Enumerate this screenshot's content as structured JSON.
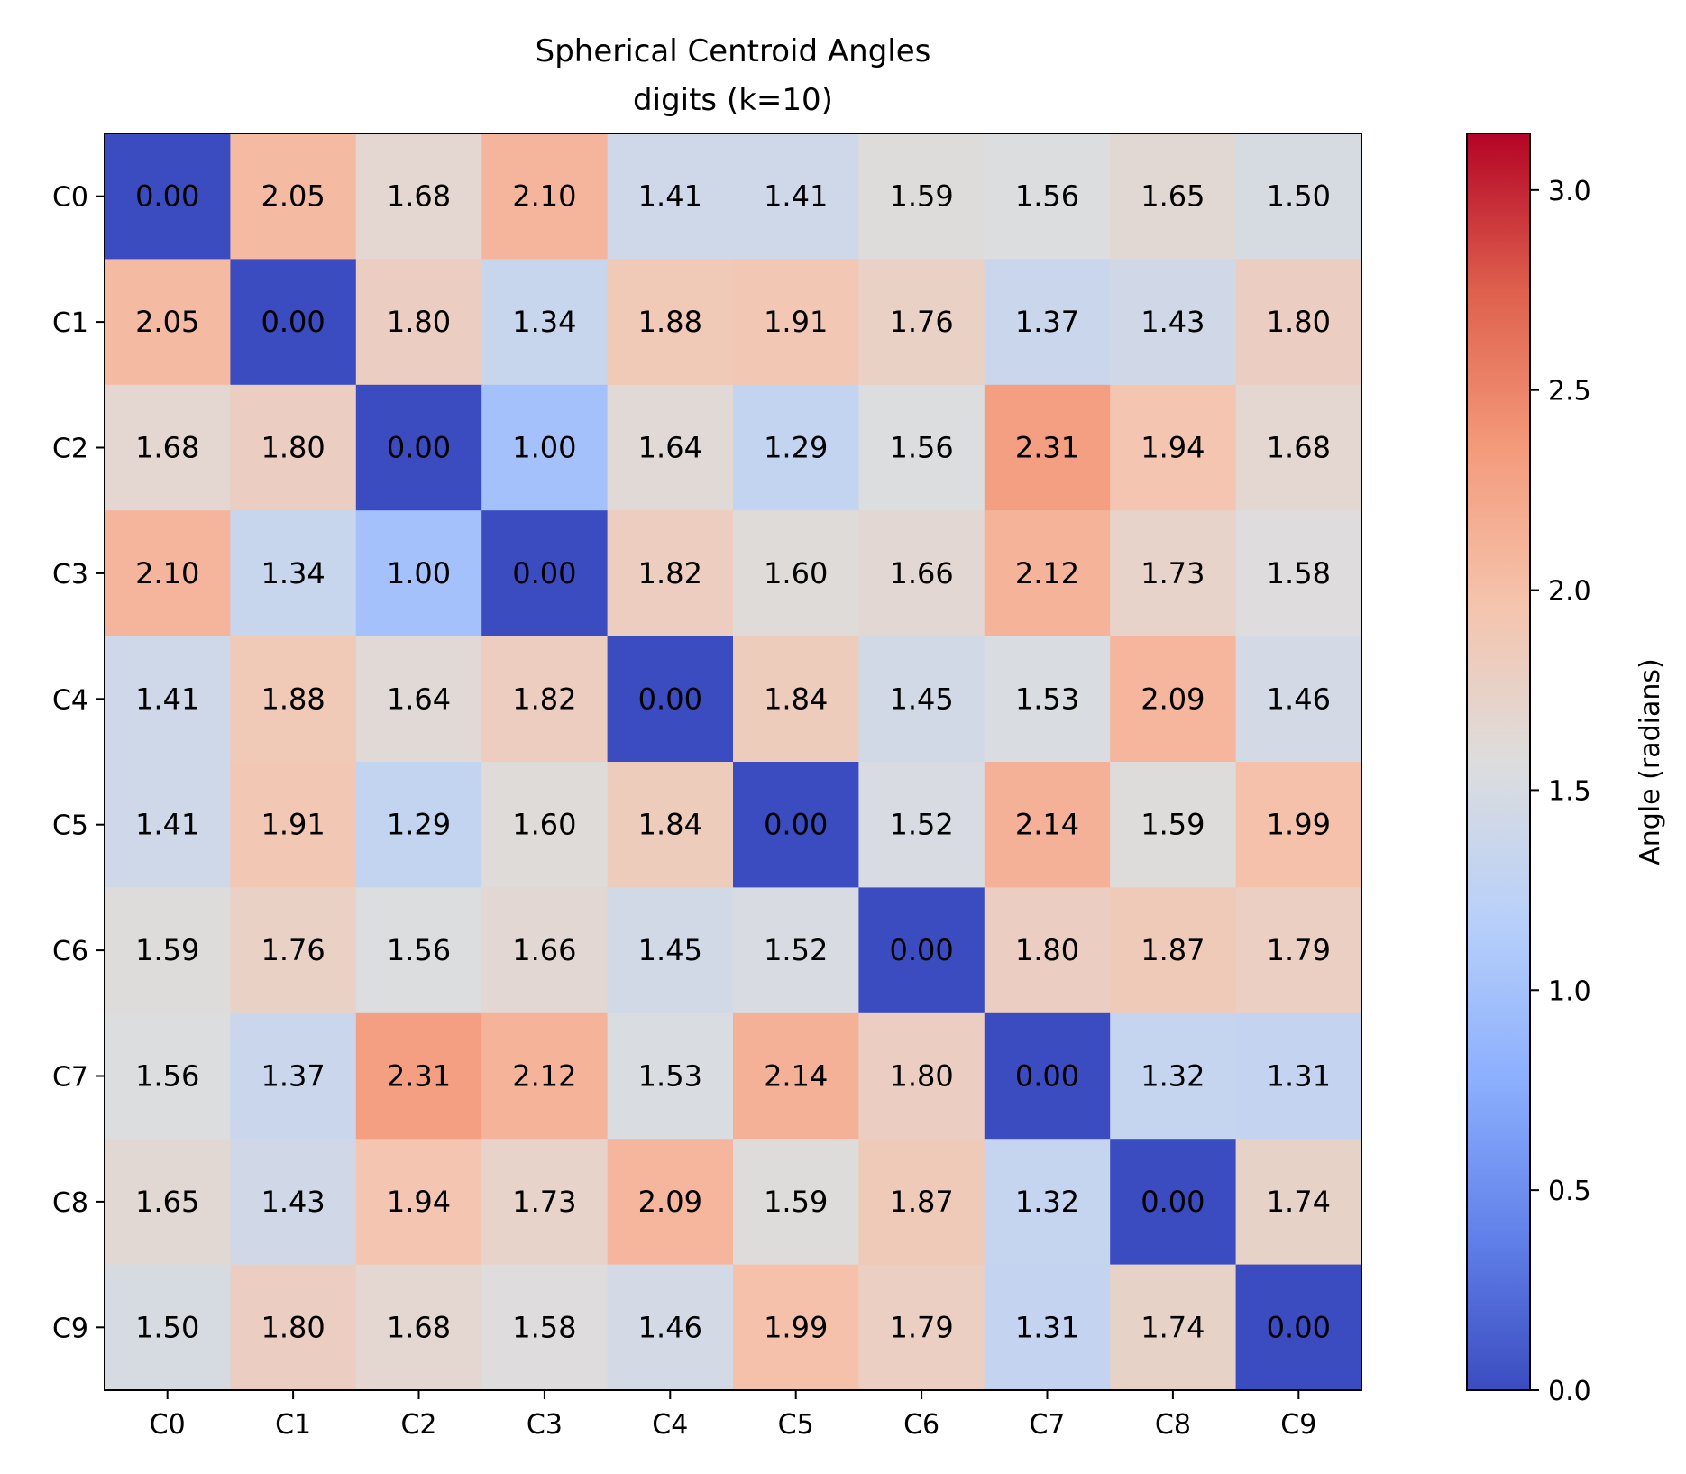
{
  "chart_data": {
    "type": "heatmap",
    "title": "Spherical Centroid Angles",
    "subtitle": "digits (k=10)",
    "row_labels": [
      "C0",
      "C1",
      "C2",
      "C3",
      "C4",
      "C5",
      "C6",
      "C7",
      "C8",
      "C9"
    ],
    "col_labels": [
      "C0",
      "C1",
      "C2",
      "C3",
      "C4",
      "C5",
      "C6",
      "C7",
      "C8",
      "C9"
    ],
    "values": [
      [
        0.0,
        2.05,
        1.68,
        2.1,
        1.41,
        1.41,
        1.59,
        1.56,
        1.65,
        1.5
      ],
      [
        2.05,
        0.0,
        1.8,
        1.34,
        1.88,
        1.91,
        1.76,
        1.37,
        1.43,
        1.8
      ],
      [
        1.68,
        1.8,
        0.0,
        1.0,
        1.64,
        1.29,
        1.56,
        2.31,
        1.94,
        1.68
      ],
      [
        2.1,
        1.34,
        1.0,
        0.0,
        1.82,
        1.6,
        1.66,
        2.12,
        1.73,
        1.58
      ],
      [
        1.41,
        1.88,
        1.64,
        1.82,
        0.0,
        1.84,
        1.45,
        1.53,
        2.09,
        1.46
      ],
      [
        1.41,
        1.91,
        1.29,
        1.6,
        1.84,
        0.0,
        1.52,
        2.14,
        1.59,
        1.99
      ],
      [
        1.59,
        1.76,
        1.56,
        1.66,
        1.45,
        1.52,
        0.0,
        1.8,
        1.87,
        1.79
      ],
      [
        1.56,
        1.37,
        2.31,
        2.12,
        1.53,
        2.14,
        1.8,
        0.0,
        1.32,
        1.31
      ],
      [
        1.65,
        1.43,
        1.94,
        1.73,
        2.09,
        1.59,
        1.87,
        1.32,
        0.0,
        1.74
      ],
      [
        1.5,
        1.8,
        1.68,
        1.58,
        1.46,
        1.99,
        1.79,
        1.31,
        1.74,
        0.0
      ]
    ],
    "colormap": "coolwarm",
    "vmin": 0.0,
    "vmax": 3.14159,
    "colorbar": {
      "label": "Angle (radians)",
      "ticks": [
        0.0,
        0.5,
        1.0,
        1.5,
        2.0,
        2.5,
        3.0
      ],
      "tick_labels": [
        "0.0",
        "0.5",
        "1.0",
        "1.5",
        "2.0",
        "2.5",
        "3.0"
      ]
    },
    "grid": false,
    "legend": "colorbar-right"
  }
}
